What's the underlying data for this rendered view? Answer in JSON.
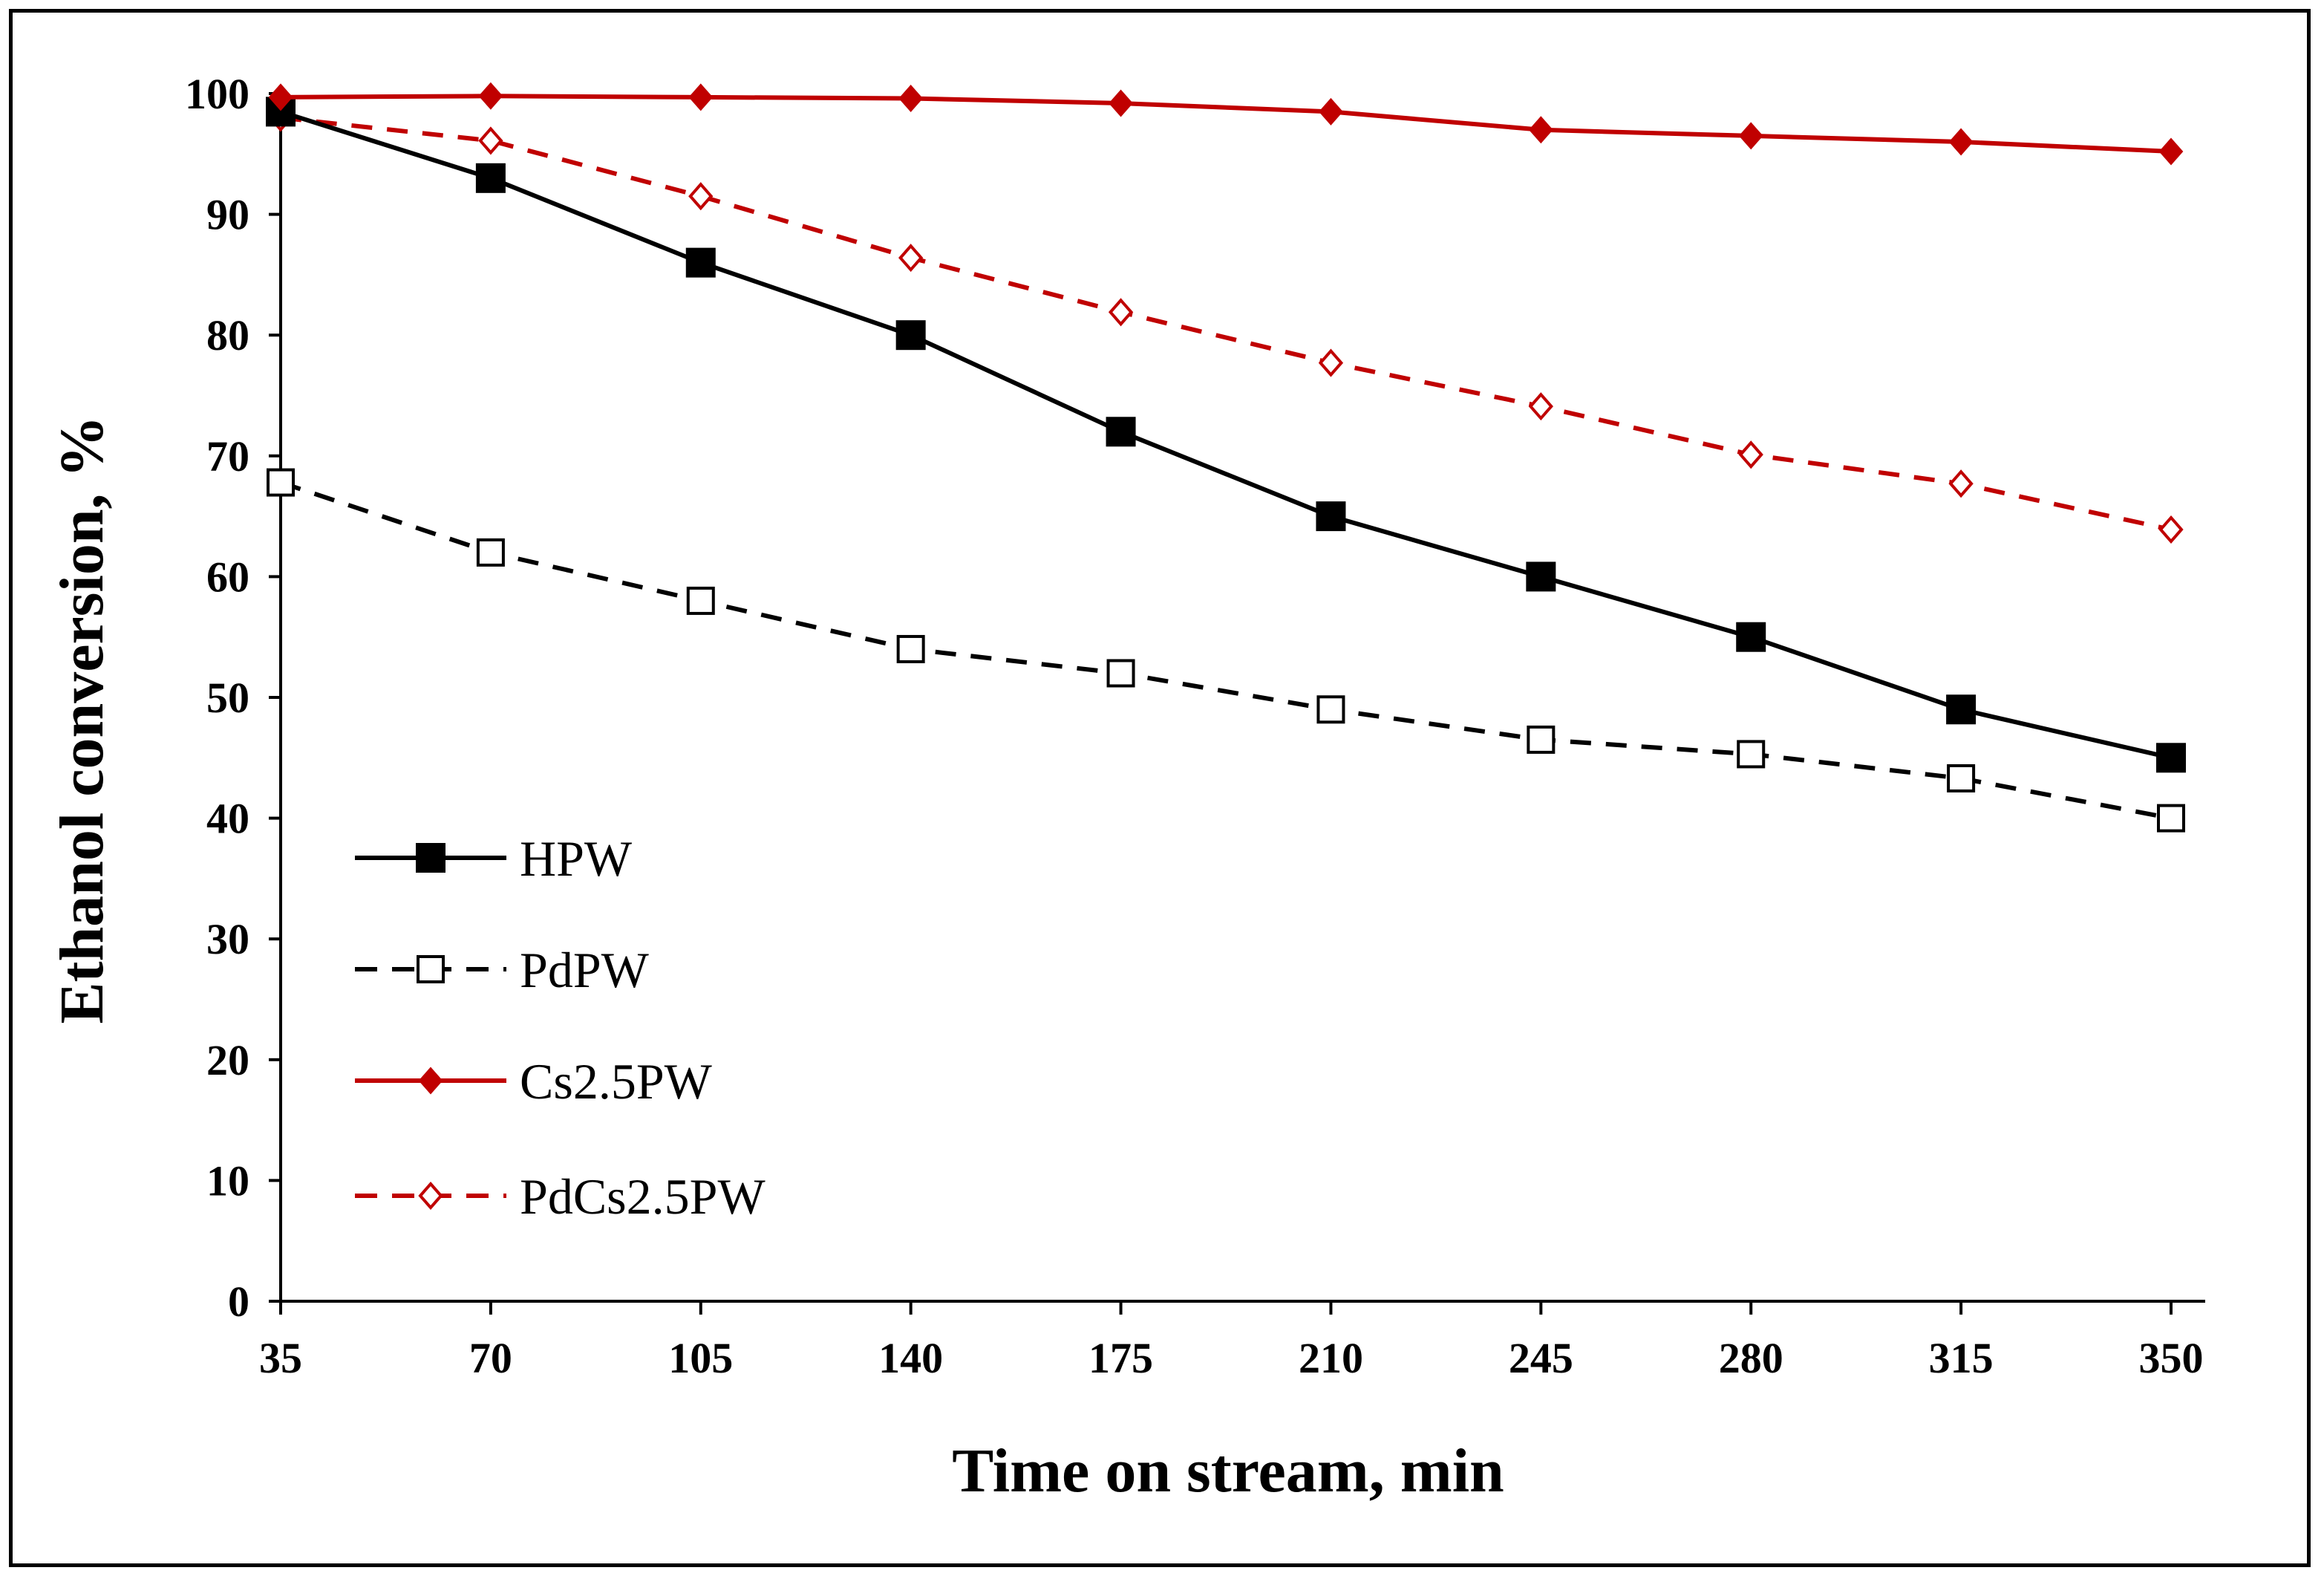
{
  "chart_data": {
    "type": "line",
    "title": "",
    "xlabel": "Time on stream, min",
    "ylabel": "Ethanol conversion, %",
    "x": [
      35,
      70,
      105,
      140,
      175,
      210,
      245,
      280,
      315,
      350
    ],
    "x_tick_labels": [
      "35",
      "70",
      "105",
      "140",
      "175",
      "210",
      "245",
      "280",
      "315",
      "350"
    ],
    "y_tick_labels": [
      "0",
      "10",
      "20",
      "30",
      "40",
      "50",
      "60",
      "70",
      "80",
      "90",
      "100"
    ],
    "ylim": [
      0,
      100
    ],
    "grid": false,
    "legend_position": "left",
    "series": [
      {
        "name": "HPW",
        "values": [
          98.5,
          93,
          86,
          80,
          72,
          65,
          60,
          55,
          49,
          45
        ],
        "color": "#000000",
        "dash": "solid",
        "marker": "filled-square"
      },
      {
        "name": "PdPW",
        "values": [
          67.8,
          62,
          58,
          54,
          52,
          49,
          46.5,
          45.3,
          43.3,
          40
        ],
        "color": "#000000",
        "dash": "dashed",
        "marker": "open-square"
      },
      {
        "name": "Cs2.5PW",
        "values": [
          99.7,
          99.8,
          99.7,
          99.6,
          99.2,
          98.5,
          97,
          96.5,
          96,
          95.2
        ],
        "color": "#C00000",
        "dash": "solid",
        "marker": "filled-diamond"
      },
      {
        "name": "PdCs2.5PW",
        "values": [
          98,
          96.1,
          91.5,
          86.4,
          81.9,
          77.7,
          74.1,
          70.1,
          67.7,
          63.9
        ],
        "color": "#C00000",
        "dash": "dashed",
        "marker": "open-diamond"
      }
    ]
  }
}
